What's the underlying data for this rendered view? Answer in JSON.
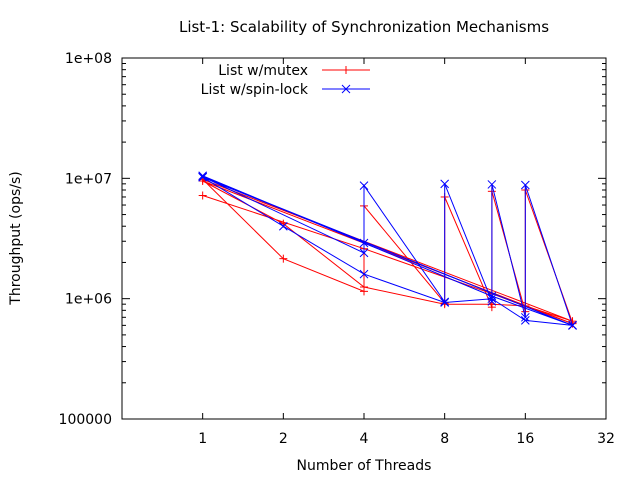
{
  "chart_data": {
    "type": "line",
    "title": "List-1: Scalability of Synchronization Mechanisms",
    "xlabel": "Number of Threads",
    "ylabel": "Throughput (ops/s)",
    "x_scale": "log2",
    "y_scale": "log10",
    "xlim": [
      0.5,
      32
    ],
    "ylim": [
      100000,
      100000000
    ],
    "x_ticks": [
      1,
      2,
      4,
      8,
      16,
      32
    ],
    "x_tick_labels": [
      "1",
      "2",
      "4",
      "8",
      "16",
      "32"
    ],
    "y_ticks": [
      100000,
      1000000,
      10000000,
      100000000
    ],
    "y_tick_labels": [
      "100000",
      "1e+06",
      "1e+07",
      "1e+08"
    ],
    "grid": false,
    "legend_position": "top-left",
    "series": [
      {
        "name": "List w/mutex",
        "color": "#ff0000",
        "marker": "plus",
        "points": [
          [
            1,
            7200000
          ],
          [
            4,
            2600000
          ],
          [
            12,
            1100000
          ],
          [
            24,
            620000
          ],
          [
            1,
            9500000
          ],
          [
            2,
            4200000
          ],
          [
            4,
            1250000
          ],
          [
            8,
            900000
          ],
          [
            12,
            900000
          ],
          [
            16,
            870000
          ],
          [
            24,
            650000
          ],
          [
            1,
            9800000
          ],
          [
            2,
            2150000
          ],
          [
            4,
            1150000
          ],
          [
            4,
            5900000
          ],
          [
            8,
            920000
          ],
          [
            8,
            7000000
          ],
          [
            12,
            850000
          ],
          [
            12,
            7800000
          ],
          [
            16,
            780000
          ],
          [
            16,
            8000000
          ],
          [
            24,
            630000
          ]
        ]
      },
      {
        "name": "List w/spin-lock",
        "color": "#0000ff",
        "marker": "cross",
        "points": [
          [
            1,
            10500000
          ],
          [
            4,
            2900000
          ],
          [
            12,
            1050000
          ],
          [
            24,
            600000
          ],
          [
            1,
            10200000
          ],
          [
            2,
            4000000
          ],
          [
            4,
            1600000
          ],
          [
            8,
            930000
          ],
          [
            12,
            1000000
          ],
          [
            16,
            660000
          ],
          [
            24,
            600000
          ],
          [
            1,
            10300000
          ],
          [
            4,
            2400000
          ],
          [
            4,
            8700000
          ],
          [
            8,
            940000
          ],
          [
            8,
            9000000
          ],
          [
            12,
            950000
          ],
          [
            12,
            8900000
          ],
          [
            16,
            700000
          ],
          [
            16,
            8800000
          ],
          [
            24,
            600000
          ]
        ]
      }
    ]
  }
}
